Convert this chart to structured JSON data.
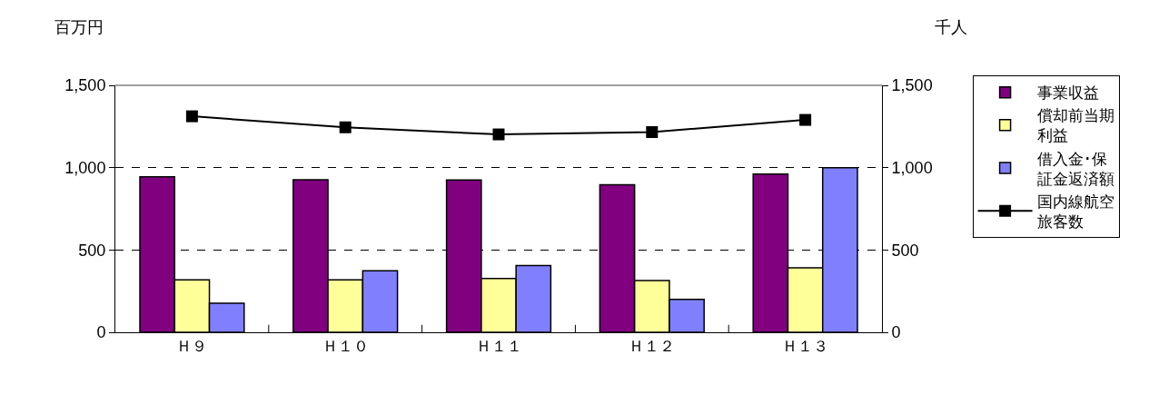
{
  "chart_data": {
    "type": "bar",
    "ylabel": "百万円",
    "y2label": "千人",
    "categories": [
      "Ｈ９",
      "Ｈ１０",
      "Ｈ１１",
      "Ｈ１２",
      "Ｈ１３"
    ],
    "series": [
      {
        "name": "事業収益",
        "color": "#800080",
        "values": [
          945,
          927,
          925,
          896,
          961
        ]
      },
      {
        "name": "償却前当期利益",
        "color": "#ffff99",
        "values": [
          318,
          318,
          327,
          314,
          392
        ]
      },
      {
        "name": "借入金･保証金返済額",
        "color": "#8080ff",
        "values": [
          176,
          373,
          406,
          200,
          1000
        ]
      },
      {
        "name": "国内線航空旅客数",
        "type": "line",
        "axis": "y2",
        "color": "#000000",
        "marker": "square",
        "values": [
          1312,
          1245,
          1202,
          1216,
          1290
        ]
      }
    ],
    "ylim": [
      0,
      1500
    ],
    "yticks": [
      0,
      {
        "value": 500,
        "label": "500"
      },
      {
        "value": 1000,
        "label": "1,000"
      },
      {
        "value": 1500,
        "label": "1,500"
      }
    ],
    "y2lim": [
      0,
      1500
    ],
    "y2ticks": [
      0,
      {
        "value": 500,
        "label": "500"
      },
      {
        "value": 1000,
        "label": "1,000"
      },
      {
        "value": 1500,
        "label": "1,500"
      }
    ],
    "grid": "y",
    "legend": "right"
  }
}
